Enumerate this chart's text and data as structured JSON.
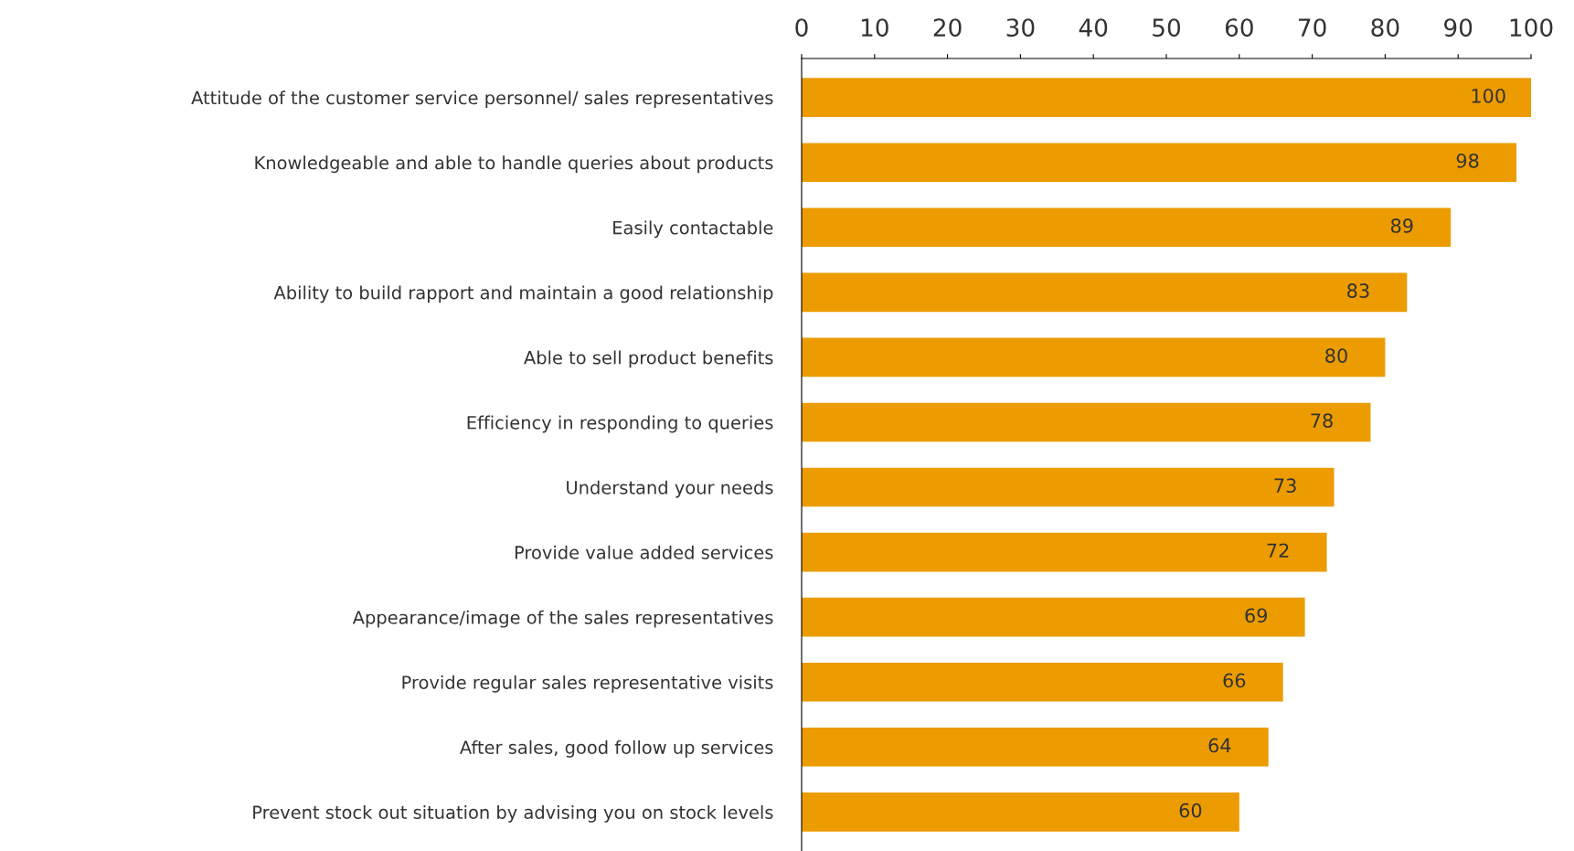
{
  "chart_data": {
    "type": "bar",
    "orientation": "horizontal",
    "categories": [
      "Attitude of the customer service personnel/ sales representatives",
      "Knowledgeable and able to handle queries about products",
      "Easily contactable",
      "Ability to build rapport and maintain a good relationship",
      "Able to sell product benefits",
      "Efficiency in responding to queries",
      "Understand your needs",
      "Provide value added services",
      "Appearance/image of the sales representatives",
      "Provide regular sales representative visits",
      "After sales, good follow up services",
      "Prevent stock out situation by advising you on stock levels"
    ],
    "values": [
      100,
      98,
      89,
      83,
      80,
      78,
      73,
      72,
      69,
      66,
      64,
      60
    ],
    "color": "#ec9c00",
    "xlim": [
      0,
      100
    ],
    "xticks": [
      0,
      10,
      20,
      30,
      40,
      50,
      60,
      70,
      80,
      90,
      100
    ],
    "data_labels": true,
    "grid": false,
    "legend": false
  }
}
